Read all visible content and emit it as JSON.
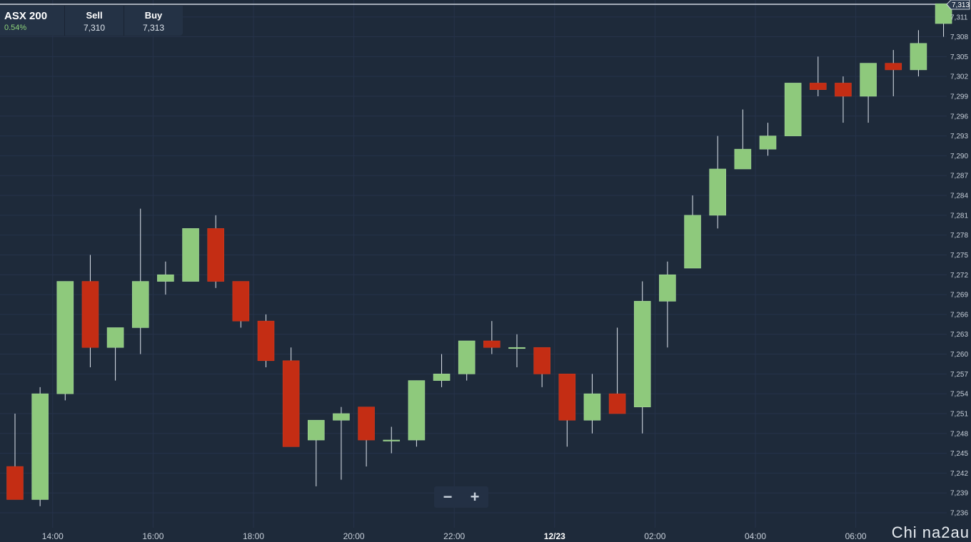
{
  "header": {
    "symbol": "ASX 200",
    "change": "0.54%",
    "sell_label": "Sell",
    "sell_value": "7,310",
    "buy_label": "Buy",
    "buy_value": "7,313"
  },
  "zoom": {
    "minus": "−",
    "plus": "+"
  },
  "watermark": "Chi na2au",
  "colors": {
    "background": "#1e2a3a",
    "up": "#8ec97c",
    "down": "#c42d14",
    "grid": "#26334a",
    "text": "#c8d0da"
  },
  "chart_data": {
    "type": "candlestick",
    "current_price_label": "7,313",
    "current_price": 7313.3,
    "ylim": [
      7235,
      7313.5
    ],
    "y_ticks": [
      "7,236",
      "7,239",
      "7,242",
      "7,245",
      "7,248",
      "7,251",
      "7,254",
      "7,257",
      "7,260",
      "7,263",
      "7,266",
      "7,269",
      "7,272",
      "7,275",
      "7,278",
      "7,281",
      "7,284",
      "7,287",
      "7,290",
      "7,293",
      "7,296",
      "7,299",
      "7,302",
      "7,305",
      "7,308",
      "7,311"
    ],
    "y_tick_values": [
      7236,
      7239,
      7242,
      7245,
      7248,
      7251,
      7254,
      7257,
      7260,
      7263,
      7266,
      7269,
      7272,
      7275,
      7278,
      7281,
      7284,
      7287,
      7290,
      7293,
      7296,
      7299,
      7302,
      7305,
      7308,
      7311
    ],
    "x_ticks": [
      "14:00",
      "16:00",
      "18:00",
      "20:00",
      "22:00",
      "12/23",
      "02:00",
      "04:00",
      "06:00"
    ],
    "x_tick_slots": [
      2,
      6,
      10,
      14,
      18,
      22,
      26,
      30,
      34
    ],
    "candles": [
      {
        "o": 7243,
        "h": 7251,
        "l": 7238,
        "c": 7238
      },
      {
        "o": 7238,
        "h": 7255,
        "l": 7237,
        "c": 7254
      },
      {
        "o": 7254,
        "h": 7271,
        "l": 7253,
        "c": 7271
      },
      {
        "o": 7271,
        "h": 7275,
        "l": 7258,
        "c": 7261
      },
      {
        "o": 7261,
        "h": 7264,
        "l": 7256,
        "c": 7264
      },
      {
        "o": 7264,
        "h": 7282,
        "l": 7260,
        "c": 7271
      },
      {
        "o": 7271,
        "h": 7274,
        "l": 7269,
        "c": 7272
      },
      {
        "o": 7271,
        "h": 7279,
        "l": 7271,
        "c": 7279
      },
      {
        "o": 7279,
        "h": 7281,
        "l": 7270,
        "c": 7271
      },
      {
        "o": 7271,
        "h": 7271,
        "l": 7264,
        "c": 7265
      },
      {
        "o": 7265,
        "h": 7266,
        "l": 7258,
        "c": 7259
      },
      {
        "o": 7259,
        "h": 7261,
        "l": 7246,
        "c": 7246
      },
      {
        "o": 7247,
        "h": 7250,
        "l": 7240,
        "c": 7250
      },
      {
        "o": 7250,
        "h": 7252,
        "l": 7241,
        "c": 7251
      },
      {
        "o": 7252,
        "h": 7252,
        "l": 7243,
        "c": 7247
      },
      {
        "o": 7247,
        "h": 7249,
        "l": 7245,
        "c": 7247
      },
      {
        "o": 7247,
        "h": 7256,
        "l": 7246,
        "c": 7256
      },
      {
        "o": 7256,
        "h": 7260,
        "l": 7255,
        "c": 7257
      },
      {
        "o": 7257,
        "h": 7262,
        "l": 7256,
        "c": 7262
      },
      {
        "o": 7262,
        "h": 7265,
        "l": 7260,
        "c": 7261
      },
      {
        "o": 7261,
        "h": 7263,
        "l": 7258,
        "c": 7261
      },
      {
        "o": 7261,
        "h": 7261,
        "l": 7255,
        "c": 7257
      },
      {
        "o": 7257,
        "h": 7257,
        "l": 7246,
        "c": 7250
      },
      {
        "o": 7250,
        "h": 7257,
        "l": 7248,
        "c": 7254
      },
      {
        "o": 7254,
        "h": 7264,
        "l": 7251,
        "c": 7251
      },
      {
        "o": 7252,
        "h": 7271,
        "l": 7248,
        "c": 7268
      },
      {
        "o": 7268,
        "h": 7274,
        "l": 7261,
        "c": 7272
      },
      {
        "o": 7273,
        "h": 7284,
        "l": 7273,
        "c": 7281
      },
      {
        "o": 7281,
        "h": 7293,
        "l": 7279,
        "c": 7288
      },
      {
        "o": 7288,
        "h": 7297,
        "l": 7288,
        "c": 7291
      },
      {
        "o": 7291,
        "h": 7295,
        "l": 7290,
        "c": 7293
      },
      {
        "o": 7293,
        "h": 7301,
        "l": 7293,
        "c": 7301
      },
      {
        "o": 7301,
        "h": 7305,
        "l": 7299,
        "c": 7300
      },
      {
        "o": 7301,
        "h": 7302,
        "l": 7295,
        "c": 7299
      },
      {
        "o": 7299,
        "h": 7304,
        "l": 7295,
        "c": 7304
      },
      {
        "o": 7304,
        "h": 7306,
        "l": 7299,
        "c": 7303
      },
      {
        "o": 7303,
        "h": 7309,
        "l": 7302,
        "c": 7307
      },
      {
        "o": 7310,
        "h": 7313,
        "l": 7308,
        "c": 7313
      }
    ]
  }
}
